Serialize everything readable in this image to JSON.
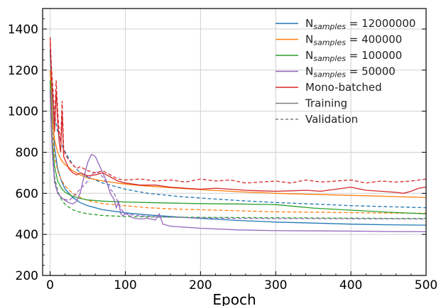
{
  "chart_data": {
    "type": "line",
    "xlabel": "Epoch",
    "ylabel": "",
    "xlim": [
      -10,
      500
    ],
    "ylim": [
      200,
      1500
    ],
    "xticks": [
      0,
      100,
      200,
      300,
      400,
      500
    ],
    "yticks": [
      200,
      400,
      600,
      800,
      1000,
      1200,
      1400
    ],
    "grid": true,
    "legend_position": "top-right",
    "legend_entries": [
      {
        "prefix": "N",
        "sub": "samples",
        "suffix": " = 12000000",
        "color": "#1f77b4",
        "style": "solid",
        "series_key": "n12000000"
      },
      {
        "prefix": "N",
        "sub": "samples",
        "suffix": " = 400000",
        "color": "#ff7f0e",
        "style": "solid",
        "series_key": "n400000"
      },
      {
        "prefix": "N",
        "sub": "samples",
        "suffix": " = 100000",
        "color": "#2ca02c",
        "style": "solid",
        "series_key": "n100000"
      },
      {
        "prefix": "N",
        "sub": "samples",
        "suffix": " = 50000",
        "color": "#9467bd",
        "style": "solid",
        "series_key": "n50000"
      },
      {
        "prefix": "Mono-batched",
        "sub": "",
        "suffix": "",
        "color": "#d62728",
        "style": "solid",
        "series_key": "mono"
      },
      {
        "prefix": "Training",
        "sub": "",
        "suffix": "",
        "color": "#808080",
        "style": "solid",
        "series_key": ""
      },
      {
        "prefix": "Validation",
        "sub": "",
        "suffix": "",
        "color": "#808080",
        "style": "dashed",
        "series_key": ""
      }
    ],
    "series": [
      {
        "key": "n12000000",
        "kind": "training",
        "color": "#1f77b4",
        "dashed": false,
        "x": [
          0,
          3,
          6,
          10,
          15,
          20,
          30,
          40,
          50,
          70,
          100,
          130,
          170,
          200,
          250,
          300,
          350,
          400,
          450,
          500
        ],
        "y": [
          1300,
          1000,
          820,
          720,
          660,
          620,
          580,
          555,
          540,
          520,
          505,
          495,
          485,
          478,
          468,
          460,
          455,
          450,
          447,
          445
        ]
      },
      {
        "key": "n12000000",
        "kind": "validation",
        "color": "#1f77b4",
        "dashed": true,
        "x": [
          0,
          3,
          6,
          10,
          15,
          20,
          30,
          40,
          50,
          70,
          100,
          130,
          170,
          200,
          250,
          300,
          350,
          400,
          450,
          500
        ],
        "y": [
          1300,
          1100,
          980,
          900,
          840,
          800,
          740,
          700,
          680,
          650,
          620,
          600,
          585,
          577,
          565,
          555,
          548,
          540,
          535,
          530
        ]
      },
      {
        "key": "n400000",
        "kind": "training",
        "color": "#ff7f0e",
        "dashed": false,
        "x": [
          0,
          3,
          6,
          10,
          15,
          20,
          30,
          40,
          50,
          70,
          100,
          130,
          170,
          200,
          250,
          300,
          350,
          400,
          450,
          500
        ],
        "y": [
          1200,
          960,
          860,
          800,
          760,
          740,
          710,
          690,
          675,
          660,
          645,
          635,
          625,
          618,
          608,
          600,
          595,
          590,
          585,
          580
        ]
      },
      {
        "key": "n400000",
        "kind": "validation",
        "color": "#ff7f0e",
        "dashed": true,
        "x": [
          0,
          3,
          6,
          10,
          15,
          20,
          30,
          40,
          50,
          70,
          100,
          130,
          170,
          200,
          250,
          300,
          350,
          400,
          450,
          500
        ],
        "y": [
          1150,
          900,
          780,
          710,
          665,
          635,
          600,
          580,
          565,
          550,
          540,
          530,
          523,
          520,
          515,
          510,
          508,
          506,
          504,
          503
        ]
      },
      {
        "key": "n100000",
        "kind": "training",
        "color": "#2ca02c",
        "dashed": false,
        "x": [
          0,
          3,
          6,
          10,
          15,
          20,
          30,
          40,
          50,
          70,
          100,
          130,
          170,
          200,
          250,
          300,
          320,
          350,
          400,
          450,
          500
        ],
        "y": [
          1150,
          850,
          730,
          660,
          625,
          605,
          585,
          575,
          568,
          562,
          558,
          555,
          552,
          550,
          548,
          545,
          538,
          528,
          518,
          508,
          500
        ]
      },
      {
        "key": "n100000",
        "kind": "validation",
        "color": "#2ca02c",
        "dashed": true,
        "x": [
          0,
          3,
          6,
          10,
          15,
          20,
          30,
          40,
          50,
          70,
          100,
          130,
          170,
          200,
          250,
          300,
          350,
          400,
          450,
          500
        ],
        "y": [
          1100,
          800,
          680,
          610,
          570,
          545,
          520,
          508,
          500,
          492,
          487,
          485,
          484,
          483,
          482,
          481,
          480,
          479,
          478,
          478
        ]
      },
      {
        "key": "n50000",
        "kind": "training",
        "color": "#9467bd",
        "dashed": false,
        "x": [
          0,
          3,
          6,
          10,
          15,
          20,
          25,
          30,
          35,
          40,
          45,
          50,
          55,
          60,
          65,
          70,
          75,
          80,
          85,
          88,
          91,
          94,
          97,
          100,
          110,
          120,
          130,
          140,
          145,
          150,
          160,
          200,
          250,
          300,
          350,
          400,
          450,
          500
        ],
        "y": [
          1100,
          800,
          660,
          600,
          580,
          565,
          555,
          548,
          560,
          600,
          680,
          750,
          790,
          780,
          740,
          700,
          660,
          600,
          570,
          530,
          560,
          500,
          490,
          505,
          480,
          475,
          478,
          470,
          500,
          450,
          440,
          430,
          422,
          418,
          417,
          416,
          414,
          413
        ]
      },
      {
        "key": "n50000",
        "kind": "validation",
        "color": "#9467bd",
        "dashed": true,
        "x": [
          0,
          3,
          6,
          10,
          15,
          20,
          25,
          30,
          35,
          40,
          45,
          50,
          55,
          60,
          65,
          70,
          75,
          80,
          85,
          90,
          95,
          100,
          120,
          150,
          200,
          250,
          300,
          350,
          400,
          450,
          500
        ],
        "y": [
          1080,
          780,
          650,
          600,
          580,
          570,
          565,
          580,
          600,
          620,
          640,
          660,
          690,
          705,
          700,
          680,
          650,
          620,
          600,
          560,
          520,
          500,
          490,
          485,
          480,
          478,
          477,
          477,
          476,
          476,
          475
        ]
      },
      {
        "key": "mono",
        "kind": "training",
        "color": "#d62728",
        "dashed": false,
        "x": [
          0,
          2,
          4,
          6,
          8,
          10,
          12,
          14,
          16,
          18,
          20,
          25,
          30,
          35,
          40,
          50,
          60,
          70,
          80,
          90,
          100,
          120,
          140,
          160,
          180,
          200,
          220,
          240,
          260,
          280,
          300,
          320,
          340,
          360,
          380,
          400,
          420,
          440,
          460,
          470,
          480,
          490,
          500
        ],
        "y": [
          1350,
          1150,
          1050,
          900,
          1100,
          950,
          850,
          800,
          1000,
          780,
          760,
          720,
          700,
          690,
          700,
          685,
          690,
          700,
          680,
          660,
          650,
          640,
          640,
          630,
          625,
          620,
          625,
          620,
          615,
          612,
          610,
          612,
          615,
          610,
          620,
          630,
          615,
          610,
          605,
          600,
          610,
          625,
          630
        ]
      },
      {
        "key": "mono",
        "kind": "validation",
        "color": "#d62728",
        "dashed": true,
        "x": [
          0,
          2,
          4,
          6,
          8,
          10,
          12,
          14,
          16,
          18,
          20,
          25,
          30,
          35,
          40,
          50,
          60,
          70,
          80,
          90,
          100,
          120,
          140,
          160,
          180,
          200,
          220,
          240,
          260,
          280,
          300,
          320,
          340,
          360,
          380,
          400,
          420,
          440,
          460,
          480,
          500
        ],
        "y": [
          1360,
          1200,
          1100,
          950,
          1150,
          1000,
          900,
          850,
          1050,
          820,
          790,
          760,
          740,
          720,
          730,
          710,
          700,
          710,
          690,
          670,
          665,
          670,
          660,
          665,
          655,
          670,
          660,
          665,
          650,
          655,
          660,
          650,
          665,
          655,
          660,
          665,
          650,
          660,
          655,
          660,
          670
        ]
      }
    ]
  }
}
